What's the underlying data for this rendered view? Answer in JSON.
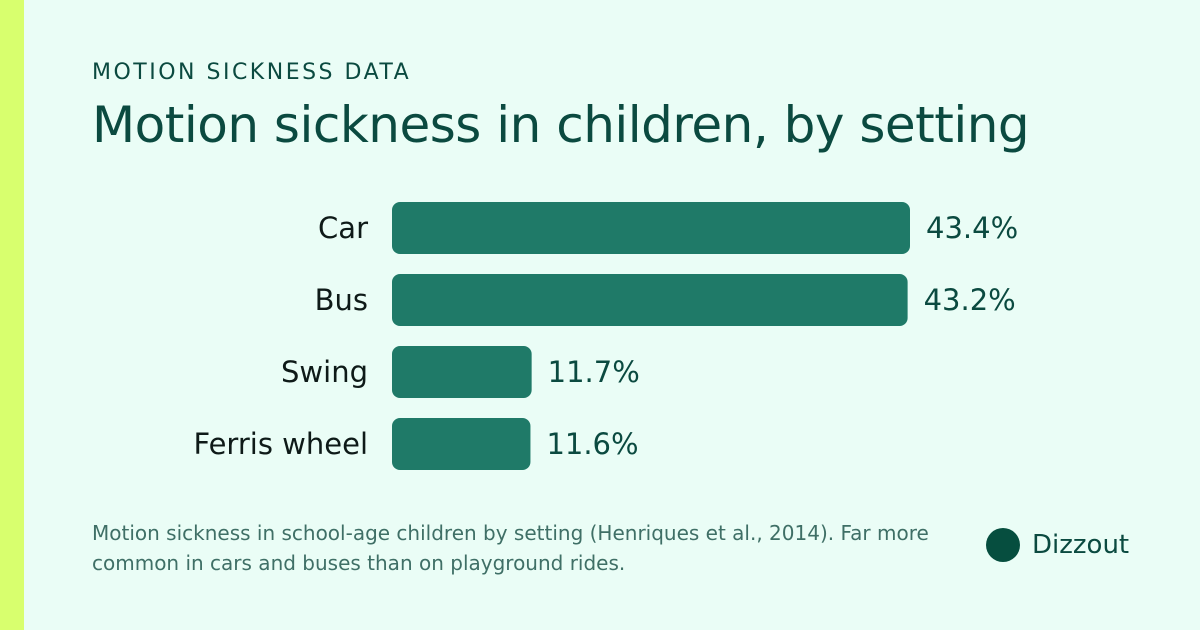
{
  "header": {
    "eyebrow": "MOTION SICKNESS DATA",
    "title": "Motion sickness in children, by setting"
  },
  "chart_data": {
    "type": "bar",
    "orientation": "horizontal",
    "categories": [
      "Car",
      "Bus",
      "Swing",
      "Ferris wheel"
    ],
    "values": [
      43.4,
      43.2,
      11.7,
      11.6
    ],
    "value_labels": [
      "43.4%",
      "43.2%",
      "11.7%",
      "11.6%"
    ],
    "unit": "%",
    "bar_color": "#1f7a68",
    "grid": false,
    "legend": "none"
  },
  "footer": {
    "caption": "Motion sickness in school-age children by setting (Henriques et al., 2014). Far more common in cars and buses than on playground rides.",
    "brand": "Dizzout"
  },
  "colors": {
    "background": "#eafdf6",
    "accent_strip": "#d8ff6e",
    "text": "#0b4a40",
    "brand_dot": "#064e3f"
  }
}
